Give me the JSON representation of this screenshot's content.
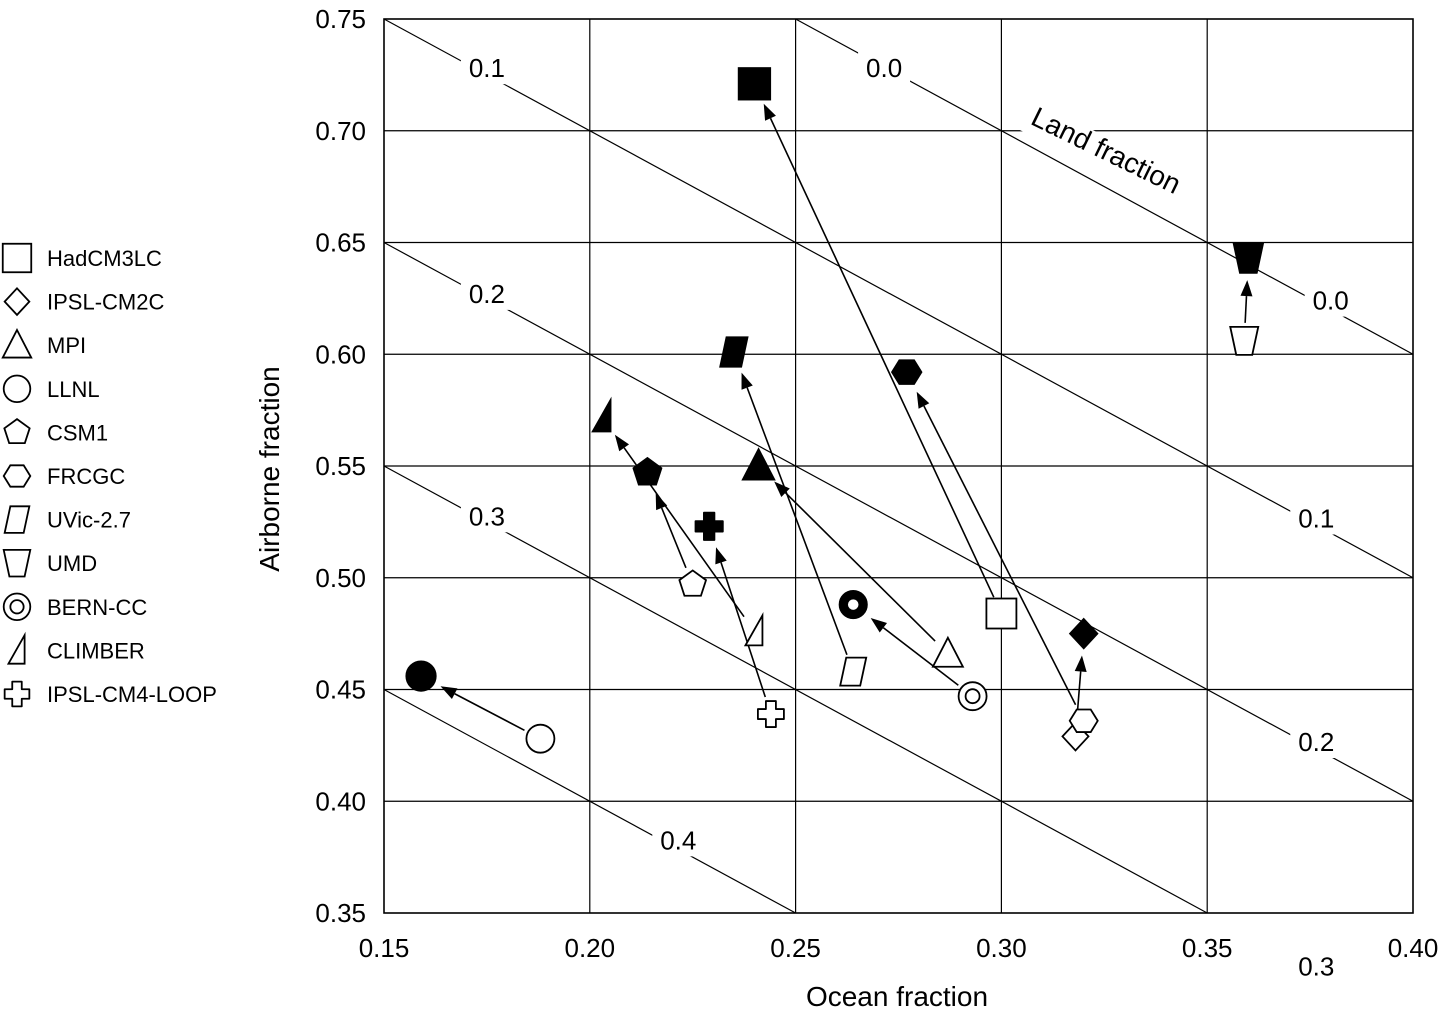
{
  "chart_data": {
    "type": "scatter",
    "title": "",
    "xlabel": "Ocean fraction",
    "ylabel": "Airborne fraction",
    "xlim": [
      0.15,
      0.4
    ],
    "ylim": [
      0.35,
      0.75
    ],
    "x_ticks": [
      "0.15",
      "0.20",
      "0.25",
      "0.30",
      "0.35",
      "0.40"
    ],
    "y_ticks": [
      "0.35",
      "0.40",
      "0.45",
      "0.50",
      "0.55",
      "0.60",
      "0.65",
      "0.70",
      "0.75"
    ],
    "grid": true,
    "legend_placement": "left",
    "annotation": "Land fraction",
    "land_fraction_lines": [
      {
        "value": 0.0,
        "label": "0.0"
      },
      {
        "value": 0.1,
        "label": "0.1"
      },
      {
        "value": 0.2,
        "label": "0.2"
      },
      {
        "value": 0.3,
        "label": "0.3"
      },
      {
        "value": 0.4,
        "label": "0.4"
      }
    ],
    "series": [
      {
        "name": "HadCM3LC",
        "marker": "square",
        "open": [
          0.3,
          0.484
        ],
        "filled": [
          0.24,
          0.721
        ]
      },
      {
        "name": "IPSL-CM2C",
        "marker": "diamond",
        "open": [
          0.318,
          0.429
        ],
        "filled": [
          0.32,
          0.475
        ]
      },
      {
        "name": "MPI",
        "marker": "triangle",
        "open": [
          0.287,
          0.466
        ],
        "filled": [
          0.241,
          0.55
        ]
      },
      {
        "name": "LLNL",
        "marker": "circle",
        "open": [
          0.188,
          0.428
        ],
        "filled": [
          0.159,
          0.456
        ]
      },
      {
        "name": "CSM1",
        "marker": "pentagon",
        "open": [
          0.225,
          0.497
        ],
        "filled": [
          0.214,
          0.547
        ]
      },
      {
        "name": "FRCGC",
        "marker": "hexagon",
        "open": [
          0.32,
          0.436
        ],
        "filled": [
          0.277,
          0.592
        ]
      },
      {
        "name": "UVic-2.7",
        "marker": "parallelogram",
        "open": [
          0.264,
          0.458
        ],
        "filled": [
          0.235,
          0.601
        ]
      },
      {
        "name": "UMD",
        "marker": "inverted-trapezoid",
        "open": [
          0.359,
          0.606
        ],
        "filled": [
          0.36,
          0.643
        ]
      },
      {
        "name": "BERN-CC",
        "marker": "double-circle",
        "open": [
          0.293,
          0.447
        ],
        "filled": [
          0.264,
          0.488
        ]
      },
      {
        "name": "CLIMBER",
        "marker": "right-triangle",
        "open": [
          0.24,
          0.476
        ],
        "filled": [
          0.203,
          0.572
        ]
      },
      {
        "name": "IPSL-CM4-LOOP",
        "marker": "cross",
        "open": [
          0.244,
          0.439
        ],
        "filled": [
          0.229,
          0.523
        ]
      }
    ]
  }
}
